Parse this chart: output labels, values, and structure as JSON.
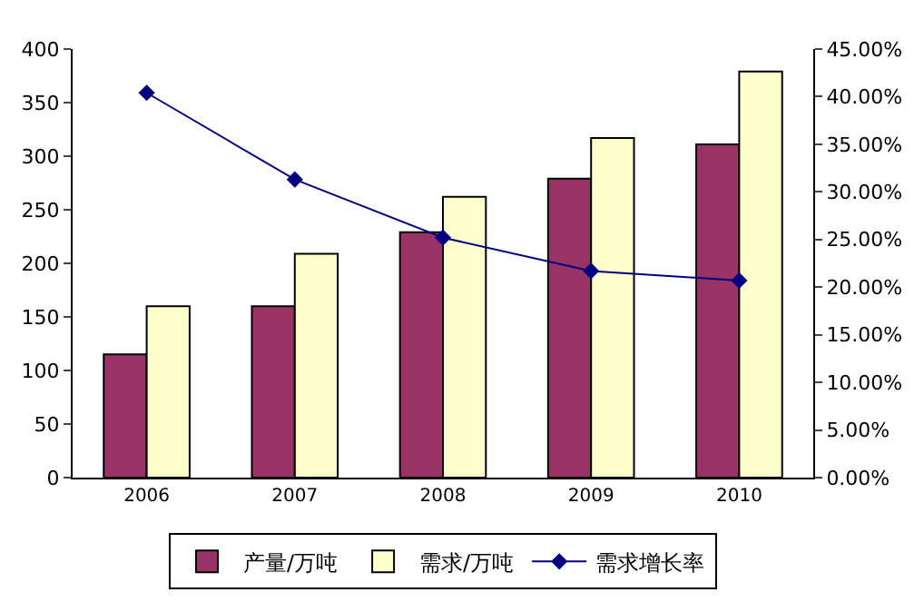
{
  "chart_data": {
    "type": "bar",
    "categories": [
      "2006",
      "2007",
      "2008",
      "2009",
      "2010"
    ],
    "series": [
      {
        "name": "产量/万吨",
        "color": "#993366",
        "values": [
          115,
          160,
          229,
          279,
          311
        ]
      },
      {
        "name": "需求/万吨",
        "color": "#ffffcc",
        "values": [
          160,
          209,
          262,
          317,
          379
        ]
      },
      {
        "name": "需求增长率",
        "type": "line",
        "axis": "y2",
        "color": "#000080",
        "marker": "diamond",
        "values": [
          40.4,
          31.3,
          25.2,
          21.7,
          20.7
        ]
      }
    ],
    "ylim": [
      0,
      400
    ],
    "yticks": [
      0,
      50,
      100,
      150,
      200,
      250,
      300,
      350,
      400
    ],
    "y2lim": [
      0,
      45
    ],
    "y2ticks": [
      {
        "value": 0,
        "label": "0.00%"
      },
      {
        "value": 5,
        "label": "5.00%"
      },
      {
        "value": 10,
        "label": "10.00%"
      },
      {
        "value": 15,
        "label": "15.00%"
      },
      {
        "value": 20,
        "label": "20.00%"
      },
      {
        "value": 25,
        "label": "25.00%"
      },
      {
        "value": 30,
        "label": "30.00%"
      },
      {
        "value": 35,
        "label": "35.00%"
      },
      {
        "value": 40,
        "label": "40.00%"
      },
      {
        "value": 45,
        "label": "45.00%"
      }
    ],
    "legend": "bottom"
  }
}
